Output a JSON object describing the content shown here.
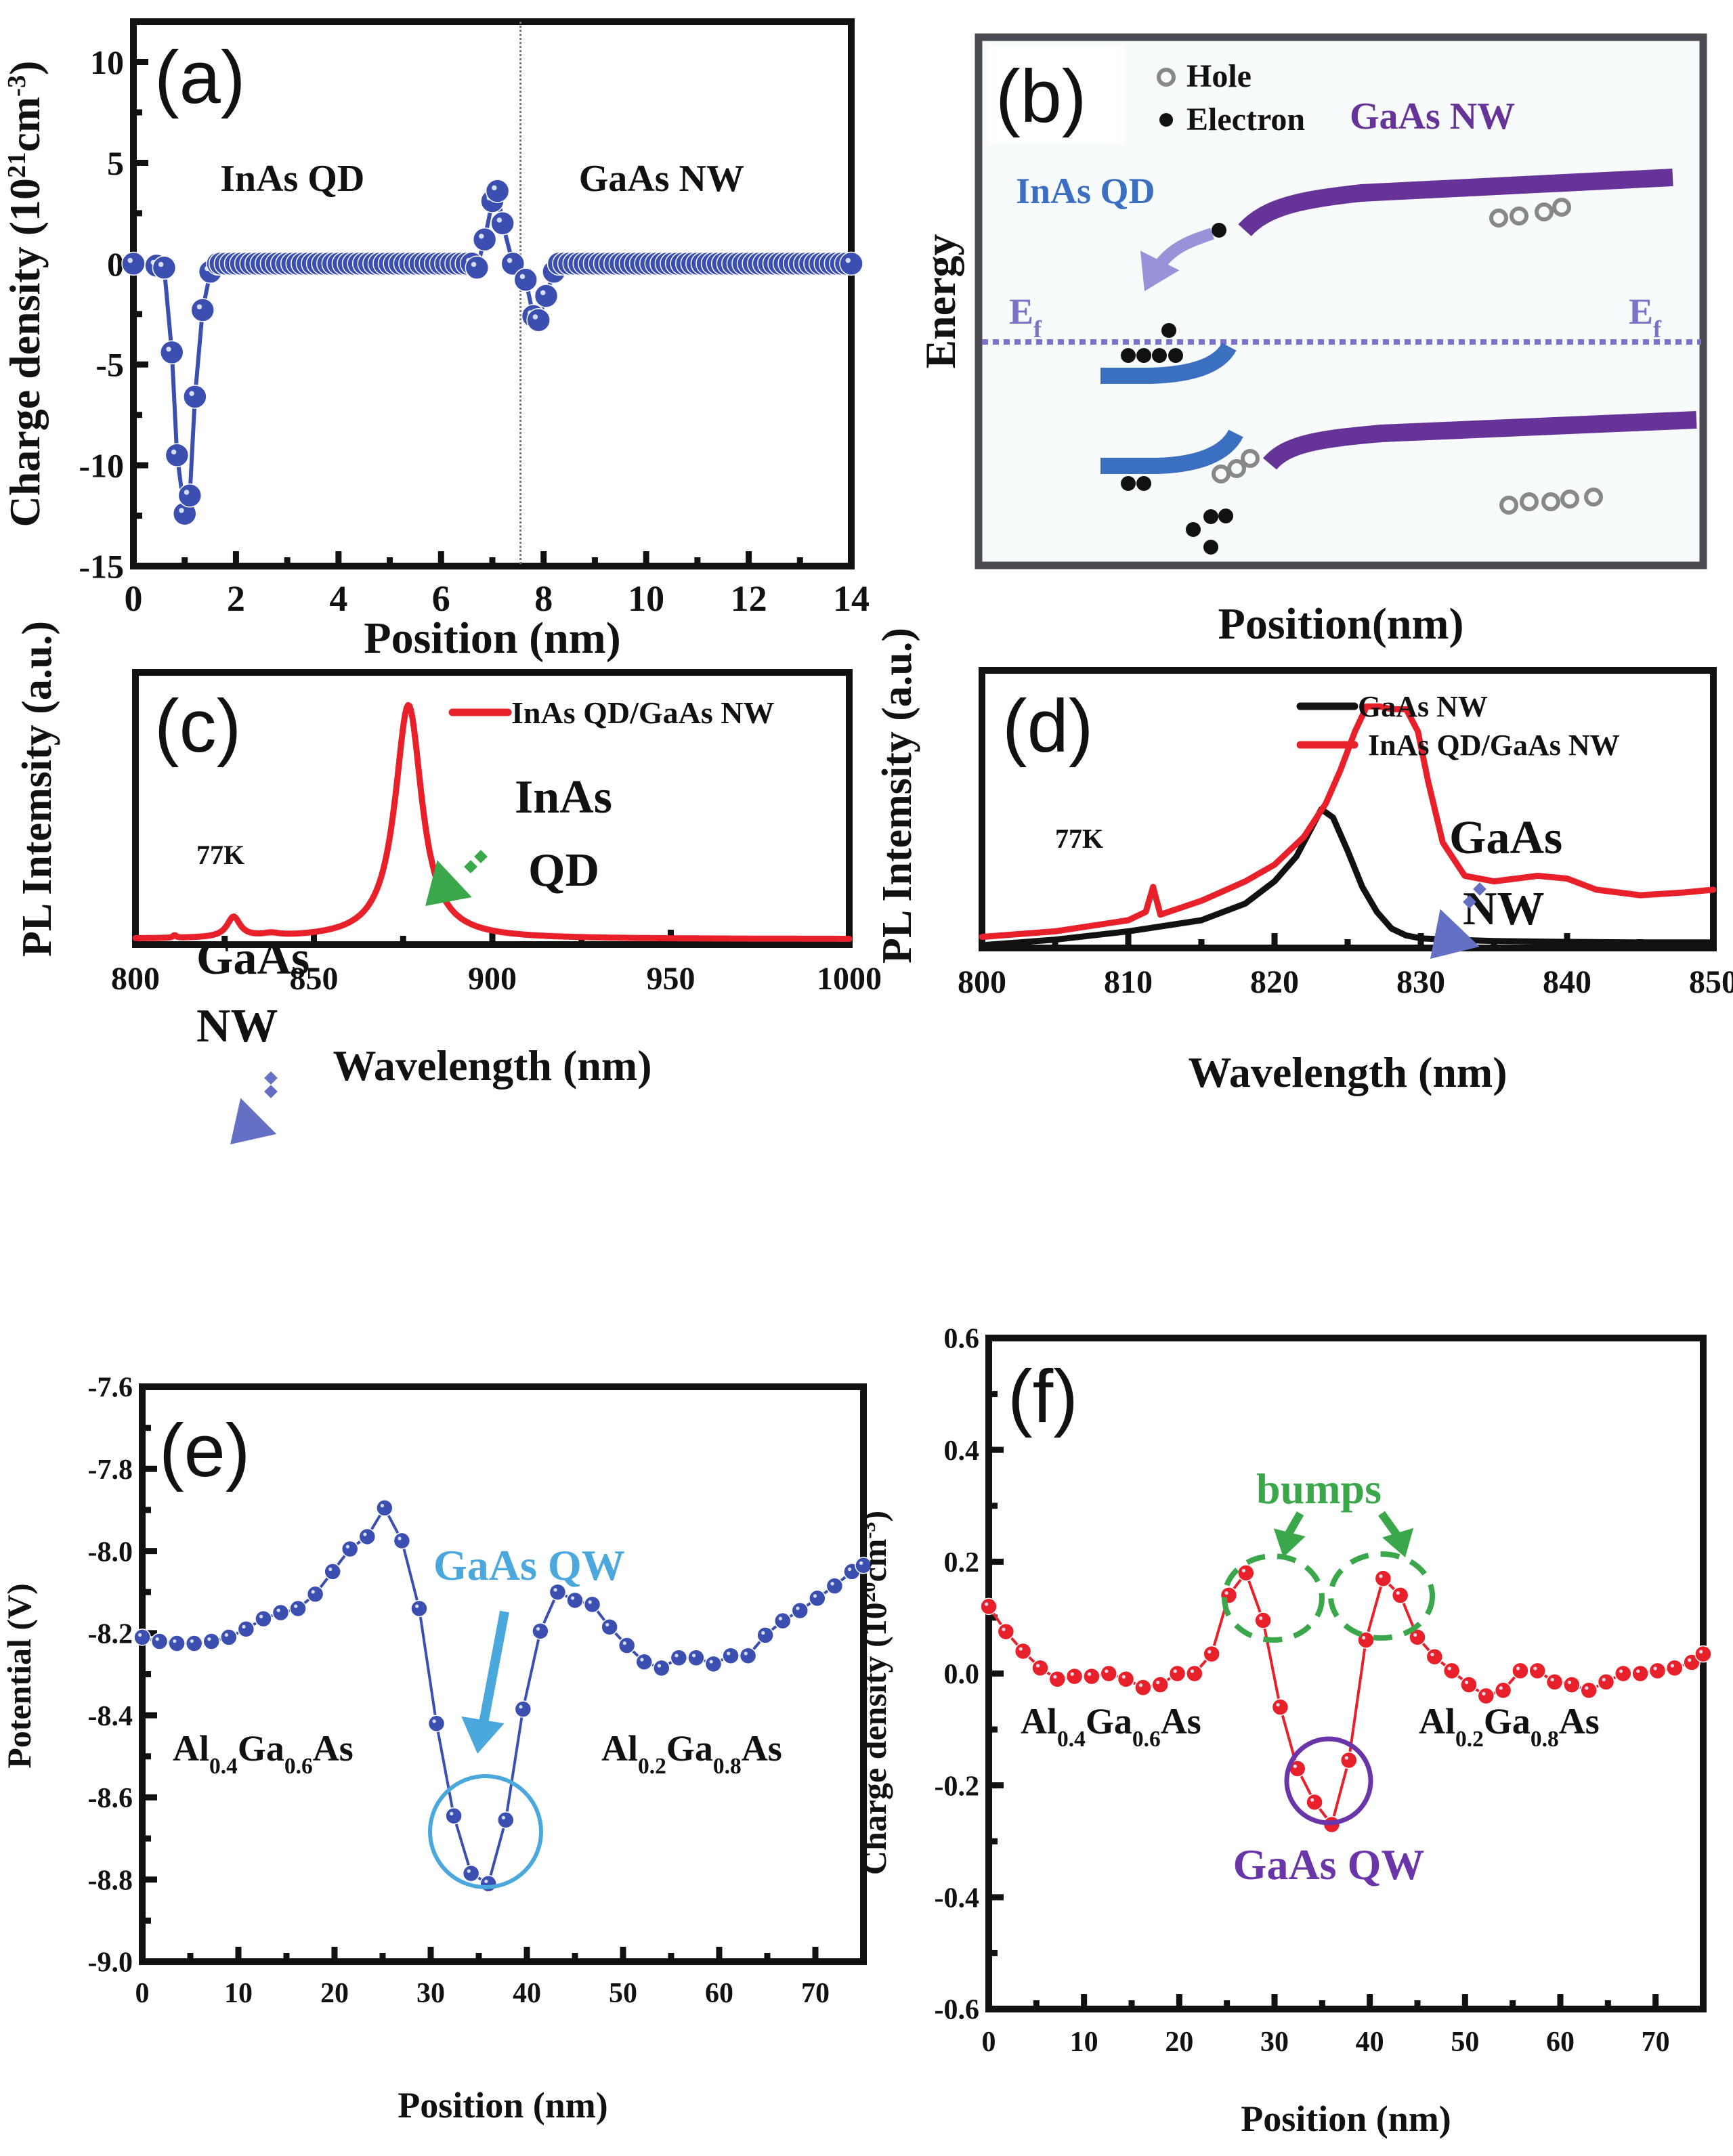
{
  "figure": {
    "colors": {
      "blue_series": "#3a4fb0",
      "red_series": "#e8202a",
      "black_series": "#111111",
      "inas_band": "#3b6fc0",
      "gaas_band": "#663399",
      "fermi": "#7b72c8",
      "arrow_blue": "#6470c4",
      "arrow_green": "#3aa84a",
      "qw_cyan": "#4aa8dc",
      "qw_purple": "#6a35a8",
      "bumps_green": "#3aa84a",
      "hole": "#888888"
    }
  },
  "chart_data": [
    {
      "panel": "a",
      "type": "scatter",
      "panel_label": "(a)",
      "title": "",
      "xlabel": "Position (nm)",
      "ylabel": "Charge density (10²¹cm⁻³)",
      "ylabel_parts": {
        "base": "Charge density (10",
        "sup1": "21",
        "mid": "cm",
        "sup2": "-3",
        "end": ")"
      },
      "xlim": [
        0,
        14
      ],
      "ylim": [
        -15,
        12
      ],
      "xticks": [
        0,
        2,
        4,
        6,
        8,
        10,
        12,
        14
      ],
      "xtick_labels": [
        "0",
        "2",
        "4",
        "6",
        "8",
        "10",
        "12",
        "14"
      ],
      "yticks": [
        -15,
        -10,
        -5,
        0,
        5,
        10
      ],
      "ytick_labels": [
        "-15",
        "-10",
        "-5",
        "0",
        "5",
        "10"
      ],
      "vline_x": 7.55,
      "annotations": [
        {
          "text": "InAs QD",
          "x": 3.1,
          "y": 3.6
        },
        {
          "text": "GaAs NW",
          "x": 10.3,
          "y": 3.6
        }
      ],
      "series": [
        {
          "name": "charge density",
          "x": [
            0.0,
            0.45,
            0.6,
            0.75,
            0.85,
            1.0,
            1.1,
            1.2,
            1.35,
            1.5,
            1.65,
            6.7,
            6.85,
            7.0,
            7.1,
            7.2,
            7.4,
            7.65,
            7.8,
            7.9,
            8.05,
            8.2,
            8.3
          ],
          "y": [
            0.0,
            -0.1,
            -0.2,
            -4.4,
            -9.5,
            -12.4,
            -11.5,
            -6.6,
            -2.3,
            -0.4,
            0.0,
            -0.2,
            1.2,
            3.1,
            3.6,
            2.0,
            0.0,
            -0.8,
            -2.6,
            -2.8,
            -1.6,
            -0.4,
            0.0
          ]
        },
        {
          "name": "zero-plateau left",
          "x_start": 1.7,
          "x_end": 6.6,
          "step": 0.1,
          "y": 0
        },
        {
          "name": "zero-plateau right",
          "x_start": 8.4,
          "x_end": 14.0,
          "step": 0.1,
          "y": 0
        }
      ]
    },
    {
      "panel": "b",
      "type": "diagram",
      "panel_label": "(b)",
      "xlabel": "Position(nm)",
      "ylabel": "Energy",
      "legend": [
        {
          "symbol": "hole",
          "label": "Hole"
        },
        {
          "symbol": "electron",
          "label": "Electron"
        }
      ],
      "labels": {
        "gaas": "GaAs NW",
        "inas": "InAs QD",
        "ef_left": "E",
        "ef_left_sub": "f",
        "ef_right": "E",
        "ef_right_sub": "f"
      }
    },
    {
      "panel": "c",
      "type": "line",
      "panel_label": "(c)",
      "xlabel": "Wavelength (nm)",
      "ylabel": "PL Intemsity (a.u.)",
      "xlim": [
        800,
        1000
      ],
      "ylim": [
        0,
        1.0
      ],
      "xticks": [
        800,
        850,
        900,
        950,
        1000
      ],
      "xtick_labels": [
        "800",
        "850",
        "900",
        "950",
        "1000"
      ],
      "legend": [
        {
          "name": "InAs QD/GaAs NW",
          "color": "#e8202a"
        }
      ],
      "legend_position": "top-right",
      "annotations": [
        {
          "text": "77K"
        },
        {
          "text": "InAs"
        },
        {
          "text": "QD"
        },
        {
          "text": "GaAs"
        },
        {
          "text": "NW"
        }
      ],
      "series": [
        {
          "name": "InAs QD/GaAs NW",
          "peaks": [
            {
              "center": 876.5,
              "amp": 0.86,
              "width": 4.6
            },
            {
              "center": 827.5,
              "amp": 0.075,
              "width": 2.2
            },
            {
              "center": 838,
              "amp": 0.01,
              "width": 3
            },
            {
              "center": 811,
              "amp": 0.01,
              "width": 0.5
            }
          ],
          "baseline": 0.02
        }
      ]
    },
    {
      "panel": "d",
      "type": "line",
      "panel_label": "(d)",
      "xlabel": "Wavelength (nm)",
      "ylabel": "PL Intemsity (a.u.)",
      "xlim": [
        800,
        850
      ],
      "ylim": [
        0,
        1.0
      ],
      "xticks": [
        800,
        810,
        820,
        830,
        840,
        850
      ],
      "xtick_labels": [
        "800",
        "810",
        "820",
        "830",
        "840",
        "850"
      ],
      "legend": [
        {
          "name": "GaAs NW",
          "color": "#111111"
        },
        {
          "name": "InAs QD/GaAs NW",
          "color": "#e8202a"
        }
      ],
      "legend_position": "top-right",
      "annotations": [
        {
          "text": "77K"
        },
        {
          "text": "GaAs"
        },
        {
          "text": "NW"
        }
      ],
      "series": [
        {
          "name": "GaAs NW",
          "x": [
            800,
            805,
            810,
            815,
            818,
            820,
            821.5,
            822.5,
            823.2,
            824,
            825,
            826,
            827,
            828,
            829,
            830,
            832,
            835,
            840,
            845,
            850
          ],
          "y": [
            0.01,
            0.03,
            0.06,
            0.1,
            0.16,
            0.24,
            0.33,
            0.43,
            0.5,
            0.47,
            0.35,
            0.22,
            0.13,
            0.07,
            0.045,
            0.035,
            0.03,
            0.025,
            0.022,
            0.02,
            0.02
          ]
        },
        {
          "name": "InAs QD/GaAs NW",
          "x": [
            800,
            805,
            810,
            811.2,
            811.7,
            812.2,
            815,
            818,
            820,
            822,
            823.5,
            824.5,
            825.5,
            826.3,
            827.2,
            828,
            829,
            829.8,
            830.5,
            831.5,
            833,
            835,
            838,
            840,
            842,
            845,
            848,
            850
          ],
          "y": [
            0.04,
            0.06,
            0.1,
            0.13,
            0.22,
            0.12,
            0.17,
            0.24,
            0.3,
            0.4,
            0.52,
            0.64,
            0.78,
            0.87,
            0.87,
            0.86,
            0.86,
            0.78,
            0.6,
            0.38,
            0.26,
            0.24,
            0.26,
            0.25,
            0.21,
            0.19,
            0.2,
            0.21
          ]
        }
      ]
    },
    {
      "panel": "e",
      "type": "scatter",
      "panel_label": "(e)",
      "xlabel": "Position (nm)",
      "ylabel": "Potential (V)",
      "xlim": [
        0,
        75
      ],
      "ylim": [
        -9.0,
        -7.6
      ],
      "xticks": [
        0,
        10,
        20,
        30,
        40,
        50,
        60,
        70
      ],
      "xtick_labels": [
        "0",
        "10",
        "20",
        "30",
        "40",
        "50",
        "60",
        "70"
      ],
      "yticks": [
        -9.0,
        -8.8,
        -8.6,
        -8.4,
        -8.2,
        -8.0,
        -7.8,
        -7.6
      ],
      "ytick_labels": [
        "-9.0",
        "-8.8",
        "-8.6",
        "-8.4",
        "-8.2",
        "-8.0",
        "-7.8",
        "-7.6"
      ],
      "annotations": [
        {
          "text": "GaAs QW",
          "color": "#4aa8dc"
        },
        {
          "text": "Al",
          "sub1": "0.4",
          "mid": "Ga",
          "sub2": "0.6",
          "end": "As"
        },
        {
          "text": "Al",
          "sub1": "0.2",
          "mid": "Ga",
          "sub2": "0.8",
          "end": "As"
        }
      ],
      "series": [
        {
          "name": "potential",
          "x": [
            0,
            1.8,
            3.6,
            5.4,
            7.2,
            9.0,
            10.8,
            12.6,
            14.4,
            16.2,
            18.0,
            19.8,
            21.6,
            23.4,
            25.2,
            27.0,
            28.8,
            30.6,
            32.4,
            34.2,
            36.0,
            37.8,
            39.6,
            41.4,
            43.2,
            45.0,
            46.8,
            48.6,
            50.4,
            52.2,
            54.0,
            55.8,
            57.6,
            59.4,
            61.2,
            63.0,
            64.8,
            66.6,
            68.4,
            70.2,
            72.0,
            73.8,
            75.0
          ],
          "y": [
            -8.21,
            -8.22,
            -8.225,
            -8.225,
            -8.22,
            -8.21,
            -8.19,
            -8.165,
            -8.15,
            -8.14,
            -8.105,
            -8.05,
            -7.995,
            -7.965,
            -7.895,
            -7.975,
            -8.14,
            -8.42,
            -8.645,
            -8.785,
            -8.81,
            -8.655,
            -8.385,
            -8.195,
            -8.1,
            -8.12,
            -8.13,
            -8.185,
            -8.23,
            -8.27,
            -8.285,
            -8.26,
            -8.26,
            -8.275,
            -8.255,
            -8.255,
            -8.205,
            -8.17,
            -8.145,
            -8.115,
            -8.085,
            -8.05,
            -8.035
          ]
        }
      ]
    },
    {
      "panel": "f",
      "type": "scatter",
      "panel_label": "(f)",
      "xlabel": "Position (nm)",
      "ylabel": "Charge density (10²⁰cm⁻³)",
      "ylabel_parts": {
        "base": "Charge density (10",
        "sup1": "20",
        "mid": "cm",
        "sup2": "-3",
        "end": ")"
      },
      "xlim": [
        0,
        75
      ],
      "ylim": [
        -0.6,
        0.6
      ],
      "xticks": [
        0,
        10,
        20,
        30,
        40,
        50,
        60,
        70
      ],
      "xtick_labels": [
        "0",
        "10",
        "20",
        "30",
        "40",
        "50",
        "60",
        "70"
      ],
      "yticks": [
        -0.6,
        -0.4,
        -0.2,
        0.0,
        0.2,
        0.4,
        0.6
      ],
      "ytick_labels": [
        "-0.6",
        "-0.4",
        "-0.2",
        "0.0",
        "0.2",
        "0.4",
        "0.6"
      ],
      "annotations": [
        {
          "text": "bumps",
          "color": "#3aa84a"
        },
        {
          "text": "GaAs QW",
          "color": "#6a35a8"
        },
        {
          "text": "Al",
          "sub1": "0.4",
          "mid": "Ga",
          "sub2": "0.6",
          "end": "As"
        },
        {
          "text": "Al",
          "sub1": "0.2",
          "mid": "Ga",
          "sub2": "0.8",
          "end": "As"
        }
      ],
      "series": [
        {
          "name": "charge density",
          "x": [
            0,
            1.8,
            3.6,
            5.4,
            7.2,
            9.0,
            10.8,
            12.6,
            14.4,
            16.2,
            18.0,
            19.8,
            21.6,
            23.4,
            25.2,
            27.0,
            28.8,
            30.6,
            32.4,
            34.2,
            36.0,
            37.8,
            39.6,
            41.4,
            43.2,
            45.0,
            46.8,
            48.6,
            50.4,
            52.2,
            54.0,
            55.8,
            57.6,
            59.4,
            61.2,
            63.0,
            64.8,
            66.6,
            68.4,
            70.2,
            72.0,
            73.8,
            75.0
          ],
          "y": [
            0.12,
            0.075,
            0.04,
            0.01,
            -0.01,
            -0.005,
            -0.005,
            0.0,
            -0.01,
            -0.025,
            -0.02,
            0.0,
            0.0,
            0.035,
            0.14,
            0.18,
            0.095,
            -0.06,
            -0.17,
            -0.23,
            -0.27,
            -0.155,
            0.06,
            0.17,
            0.14,
            0.065,
            0.03,
            0.005,
            -0.02,
            -0.04,
            -0.03,
            0.005,
            0.005,
            -0.015,
            -0.02,
            -0.03,
            -0.015,
            0.0,
            0.0,
            0.005,
            0.01,
            0.02,
            0.035
          ]
        }
      ]
    }
  ]
}
